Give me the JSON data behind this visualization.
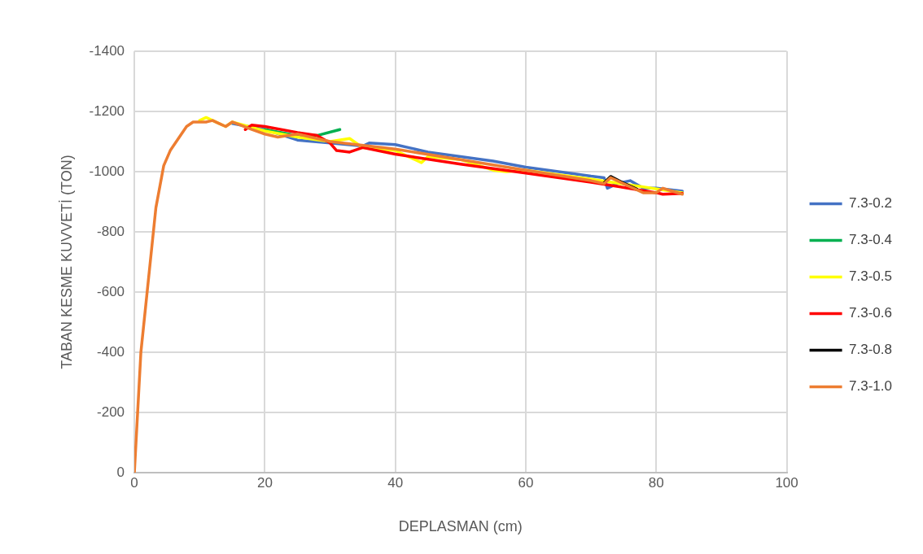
{
  "chart_data": {
    "type": "line",
    "xlabel": "DEPLASMAN (cm)",
    "ylabel": "TABAN KESME KUVVETİ (TON)",
    "xlim": [
      0,
      100
    ],
    "xticks": [
      0,
      20,
      40,
      60,
      80,
      100
    ],
    "ylim": [
      0,
      -1400
    ],
    "yticks": [
      0,
      -200,
      -400,
      -600,
      -800,
      -1000,
      -1200,
      -1400
    ],
    "grid": true,
    "legend": "right",
    "marker": "none",
    "line_style": "solid",
    "series": [
      {
        "name": "7.3-0.2",
        "color": "#4472c4",
        "x": [
          15,
          20,
          25,
          30,
          35,
          36,
          40,
          42,
          45,
          50,
          55,
          60,
          65,
          70,
          72,
          72.5,
          74,
          76,
          78,
          80,
          84
        ],
        "values": [
          -1160,
          -1140,
          -1105,
          -1095,
          -1085,
          -1095,
          -1090,
          -1080,
          -1065,
          -1050,
          -1035,
          -1015,
          -1000,
          -985,
          -980,
          -945,
          -960,
          -970,
          -945,
          -945,
          -935
        ]
      },
      {
        "name": "7.3-0.4",
        "color": "#00b050",
        "x": [
          20,
          25,
          28,
          31.5
        ],
        "values": [
          -1140,
          -1120,
          -1120,
          -1140
        ]
      },
      {
        "name": "7.3-0.5",
        "color": "#ffff00",
        "x": [
          10,
          11,
          13,
          14,
          15,
          20,
          25,
          30,
          33,
          35,
          40,
          44,
          45,
          50,
          55,
          57,
          60,
          70,
          84
        ],
        "values": [
          -1170,
          -1180,
          -1160,
          -1150,
          -1165,
          -1135,
          -1115,
          -1100,
          -1110,
          -1080,
          -1070,
          -1030,
          -1050,
          -1040,
          -1005,
          -1000,
          -1005,
          -975,
          -930
        ]
      },
      {
        "name": "7.3-0.6",
        "color": "#ff0000",
        "x": [
          17,
          18,
          20,
          25,
          28,
          30,
          31,
          33,
          35,
          40,
          50,
          60,
          70,
          80,
          81,
          84
        ],
        "values": [
          -1140,
          -1155,
          -1150,
          -1130,
          -1120,
          -1095,
          -1070,
          -1065,
          -1080,
          -1058,
          -1025,
          -995,
          -965,
          -930,
          -925,
          -928
        ]
      },
      {
        "name": "7.3-0.8",
        "color": "#000000",
        "x": [
          72,
          73,
          75,
          77
        ],
        "values": [
          -963,
          -984,
          -962,
          -942
        ]
      },
      {
        "name": "7.3-1.0",
        "color": "#ed7d31",
        "x": [
          0,
          1,
          3.3,
          4.5,
          5.5,
          8,
          9,
          11,
          12,
          13,
          14,
          15,
          18,
          20,
          22,
          25,
          30,
          40,
          50,
          60,
          70,
          72,
          73,
          75,
          78,
          80,
          81,
          84
        ],
        "values": [
          0,
          -400,
          -880,
          -1020,
          -1070,
          -1150,
          -1165,
          -1165,
          -1170,
          -1160,
          -1150,
          -1165,
          -1140,
          -1125,
          -1115,
          -1125,
          -1100,
          -1075,
          -1040,
          -1005,
          -970,
          -960,
          -980,
          -960,
          -930,
          -930,
          -945,
          -925
        ]
      }
    ]
  }
}
